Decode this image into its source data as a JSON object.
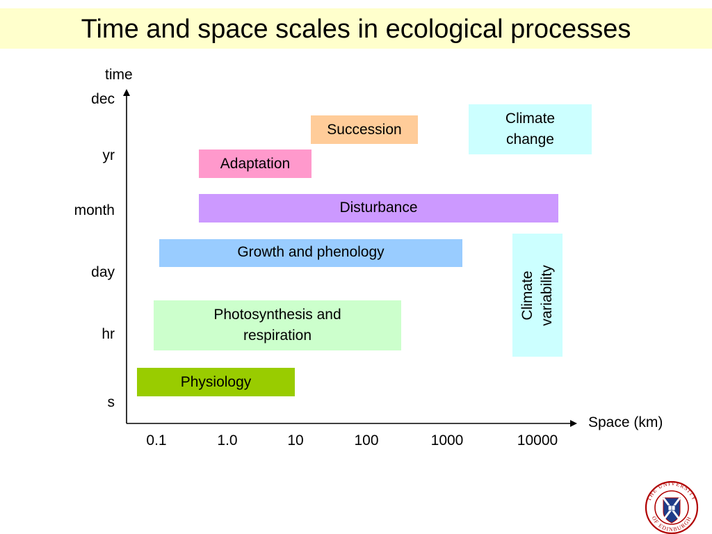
{
  "title": "Time and space scales in ecological processes",
  "y_axis": {
    "label": "time",
    "ticks": [
      "dec",
      "yr",
      "month",
      "day",
      "hr",
      "s"
    ]
  },
  "x_axis": {
    "label": "Space (km)",
    "ticks": [
      "0.1",
      "1.0",
      "10",
      "100",
      "1000",
      "10000"
    ]
  },
  "processes": [
    {
      "label": "Succession",
      "color": "#ffcc99"
    },
    {
      "label": "Climate change",
      "color": "#ccffff"
    },
    {
      "label": "Adaptation",
      "color": "#ff99cc"
    },
    {
      "label": "Disturbance",
      "color": "#cc99ff"
    },
    {
      "label": "Growth and phenology",
      "color": "#99ccff"
    },
    {
      "label": "Climate variability",
      "color": "#ccffff"
    },
    {
      "label": "Photosynthesis and respiration",
      "color": "#ccffcc"
    },
    {
      "label": "Physiology",
      "color": "#99cc00"
    }
  ],
  "logo": {
    "text": "THE UNIVERSITY OF EDINBURGH"
  }
}
